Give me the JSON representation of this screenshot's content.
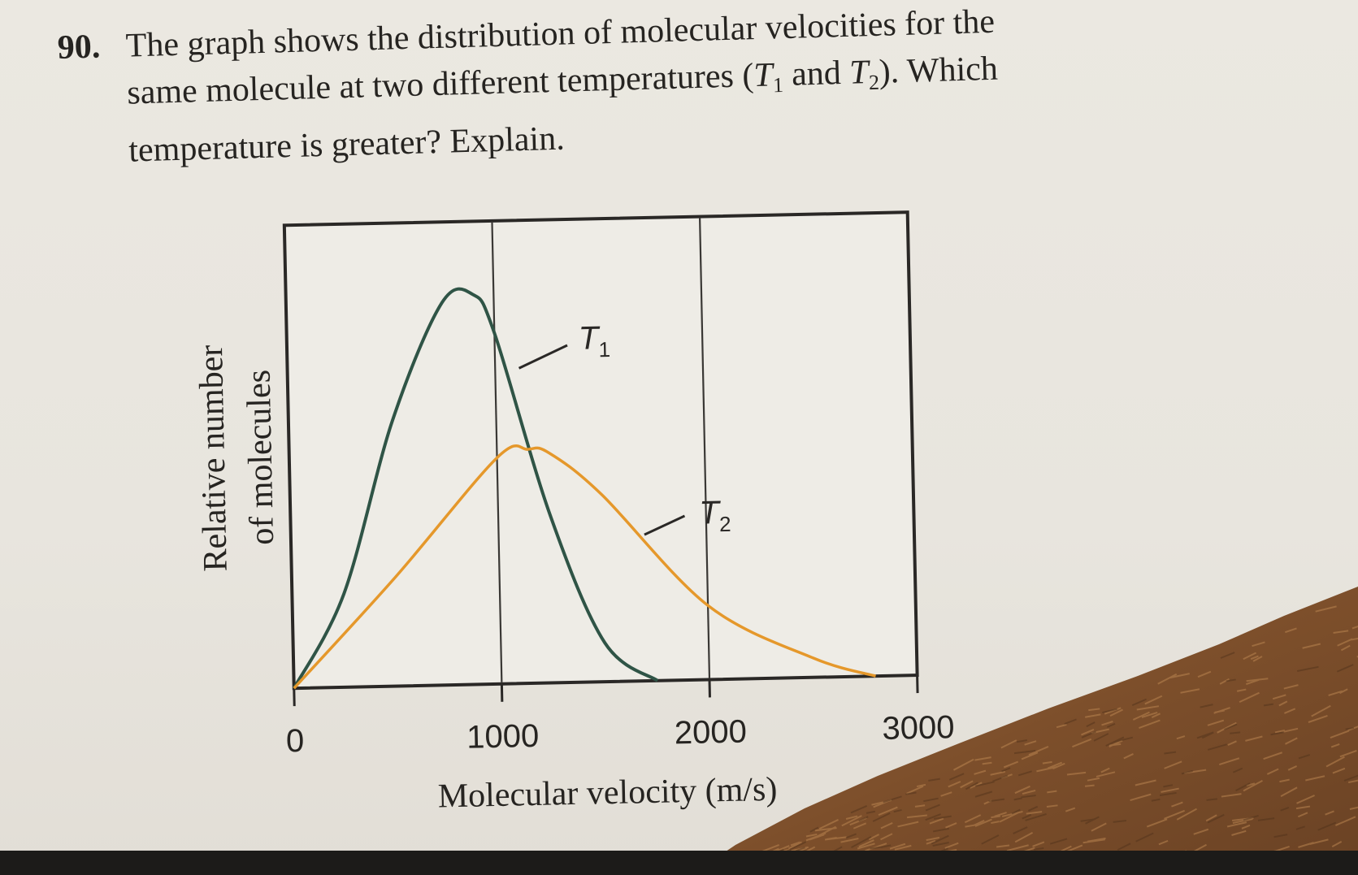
{
  "question": {
    "number": "90.",
    "line1": "The graph shows the distribution of molecular velocities for the",
    "line2_before": "same molecule at two different temperatures (",
    "t1_letter": "T",
    "t1_sub": "1",
    "line2_middle": " and ",
    "t2_letter": "T",
    "t2_sub": "2",
    "line2_after": "). Which",
    "line3": "temperature is greater? Explain."
  },
  "colors": {
    "t1_curve": "#2f5446",
    "t2_curve": "#e5982b",
    "frame": "#2a2826",
    "fur": "#8a5a32"
  },
  "chart_data": {
    "type": "line",
    "xlabel": "Molecular velocity (m/s)",
    "ylabel_line1": "Relative number",
    "ylabel_line2": "of molecules",
    "xlim": [
      0,
      3000
    ],
    "ylim": [
      0,
      1
    ],
    "x_ticks": [
      0,
      1000,
      2000,
      3000
    ],
    "x_tick_labels": [
      "0",
      "1000",
      "2000",
      "3000"
    ],
    "vertical_lines": [
      1000,
      2000
    ],
    "grid": false,
    "series": [
      {
        "name": "T1",
        "label_letter": "T",
        "label_sub": "1",
        "color": "#2f5446",
        "x": [
          0,
          250,
          500,
          750,
          900,
          1000,
          1250,
          1500,
          1750
        ],
        "values": [
          0,
          0.24,
          0.68,
          0.98,
          1.0,
          0.9,
          0.43,
          0.1,
          0
        ]
      },
      {
        "name": "T2",
        "label_letter": "T",
        "label_sub": "2",
        "color": "#e5982b",
        "x": [
          0,
          500,
          1000,
          1150,
          1250,
          1500,
          2000,
          2500,
          2800
        ],
        "values": [
          0,
          0.28,
          0.58,
          0.6,
          0.59,
          0.48,
          0.19,
          0.05,
          0
        ]
      }
    ]
  }
}
